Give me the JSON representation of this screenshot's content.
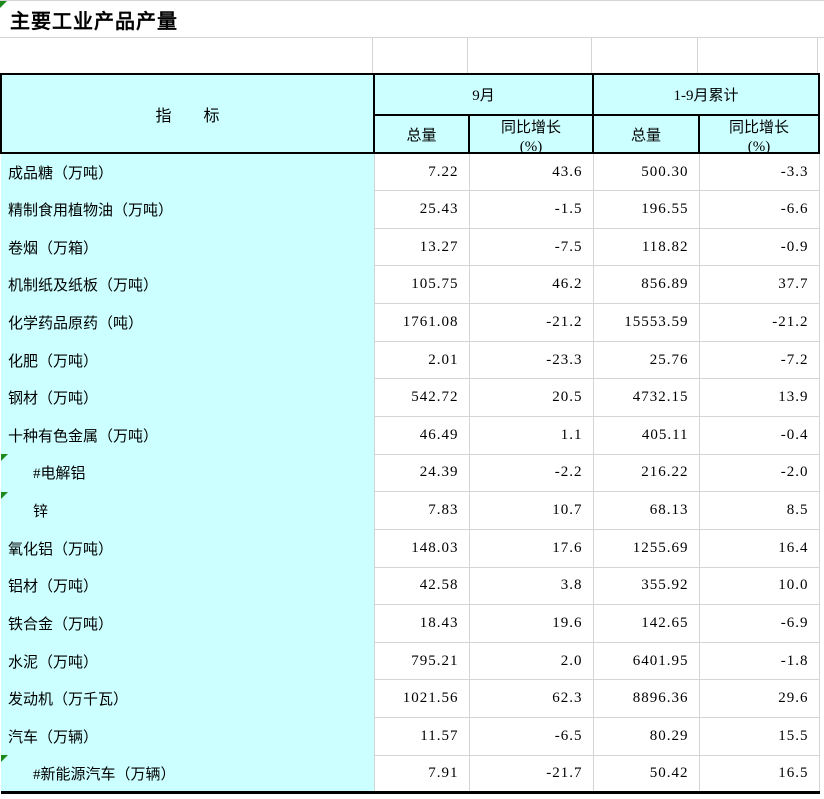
{
  "title": "主要工业产品产量",
  "header": {
    "indicator_label": "指　　标",
    "group_september": "9月",
    "group_cumulative": "1-9月累计",
    "sub_total": "总量",
    "sub_growth_line1": "同比增长",
    "sub_growth_line2": "(%)"
  },
  "colors": {
    "header_bg": "#CCFFFF",
    "gridline": "#D4D4D4",
    "flag_green": "#1E8A1E",
    "border_black": "#000000"
  },
  "rows": [
    {
      "label": "成品糖（万吨）",
      "indent": false,
      "flag": false,
      "sep_total": "7.22",
      "sep_growth": "43.6",
      "cum_total": "500.30",
      "cum_growth": "-3.3"
    },
    {
      "label": "精制食用植物油（万吨）",
      "indent": false,
      "flag": false,
      "sep_total": "25.43",
      "sep_growth": "-1.5",
      "cum_total": "196.55",
      "cum_growth": "-6.6"
    },
    {
      "label": "卷烟（万箱）",
      "indent": false,
      "flag": false,
      "sep_total": "13.27",
      "sep_growth": "-7.5",
      "cum_total": "118.82",
      "cum_growth": "-0.9"
    },
    {
      "label": "机制纸及纸板（万吨）",
      "indent": false,
      "flag": false,
      "sep_total": "105.75",
      "sep_growth": "46.2",
      "cum_total": "856.89",
      "cum_growth": "37.7"
    },
    {
      "label": "化学药品原药（吨）",
      "indent": false,
      "flag": false,
      "sep_total": "1761.08",
      "sep_growth": "-21.2",
      "cum_total": "15553.59",
      "cum_growth": "-21.2"
    },
    {
      "label": "化肥（万吨）",
      "indent": false,
      "flag": false,
      "sep_total": "2.01",
      "sep_growth": "-23.3",
      "cum_total": "25.76",
      "cum_growth": "-7.2"
    },
    {
      "label": "钢材（万吨）",
      "indent": false,
      "flag": false,
      "sep_total": "542.72",
      "sep_growth": "20.5",
      "cum_total": "4732.15",
      "cum_growth": "13.9"
    },
    {
      "label": "十种有色金属（万吨）",
      "indent": false,
      "flag": false,
      "sep_total": "46.49",
      "sep_growth": "1.1",
      "cum_total": "405.11",
      "cum_growth": "-0.4"
    },
    {
      "label": "#电解铝",
      "indent": true,
      "flag": true,
      "sep_total": "24.39",
      "sep_growth": "-2.2",
      "cum_total": "216.22",
      "cum_growth": "-2.0"
    },
    {
      "label": "锌",
      "indent": true,
      "flag": true,
      "sep_total": "7.83",
      "sep_growth": "10.7",
      "cum_total": "68.13",
      "cum_growth": "8.5"
    },
    {
      "label": "氧化铝（万吨）",
      "indent": false,
      "flag": false,
      "sep_total": "148.03",
      "sep_growth": "17.6",
      "cum_total": "1255.69",
      "cum_growth": "16.4"
    },
    {
      "label": "铝材（万吨）",
      "indent": false,
      "flag": false,
      "sep_total": "42.58",
      "sep_growth": "3.8",
      "cum_total": "355.92",
      "cum_growth": "10.0"
    },
    {
      "label": "铁合金（万吨）",
      "indent": false,
      "flag": false,
      "sep_total": "18.43",
      "sep_growth": "19.6",
      "cum_total": "142.65",
      "cum_growth": "-6.9"
    },
    {
      "label": "水泥（万吨）",
      "indent": false,
      "flag": false,
      "sep_total": "795.21",
      "sep_growth": "2.0",
      "cum_total": "6401.95",
      "cum_growth": "-1.8"
    },
    {
      "label": "发动机（万千瓦）",
      "indent": false,
      "flag": false,
      "sep_total": "1021.56",
      "sep_growth": "62.3",
      "cum_total": "8896.36",
      "cum_growth": "29.6"
    },
    {
      "label": "汽车（万辆）",
      "indent": false,
      "flag": false,
      "sep_total": "11.57",
      "sep_growth": "-6.5",
      "cum_total": "80.29",
      "cum_growth": "15.5"
    },
    {
      "label": "#新能源汽车（万辆）",
      "indent": true,
      "flag": true,
      "sep_total": "7.91",
      "sep_growth": "-21.7",
      "cum_total": "50.42",
      "cum_growth": "16.5"
    }
  ]
}
